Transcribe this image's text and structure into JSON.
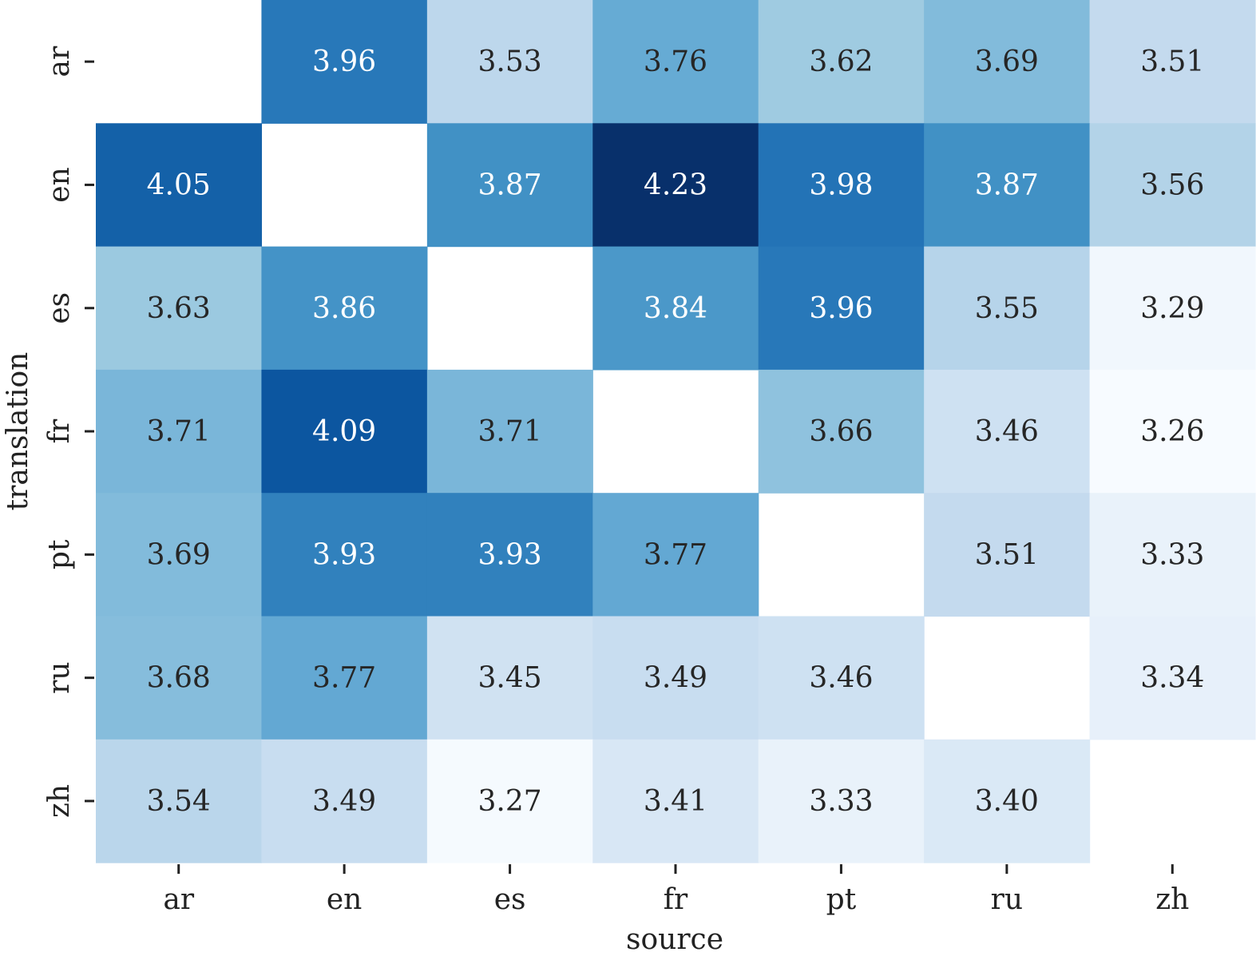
{
  "chart_data": {
    "type": "heatmap",
    "title": "",
    "xlabel": "source",
    "ylabel": "translation",
    "x_categories": [
      "ar",
      "en",
      "es",
      "fr",
      "pt",
      "ru",
      "zh"
    ],
    "y_categories": [
      "ar",
      "en",
      "es",
      "fr",
      "pt",
      "ru",
      "zh"
    ],
    "values": [
      [
        null,
        3.96,
        3.53,
        3.76,
        3.62,
        3.69,
        3.51
      ],
      [
        4.05,
        null,
        3.87,
        4.23,
        3.98,
        3.87,
        3.56
      ],
      [
        3.63,
        3.86,
        null,
        3.84,
        3.96,
        3.55,
        3.29
      ],
      [
        3.71,
        4.09,
        3.71,
        null,
        3.66,
        3.46,
        3.26
      ],
      [
        3.69,
        3.93,
        3.93,
        3.77,
        null,
        3.51,
        3.33
      ],
      [
        3.68,
        3.77,
        3.45,
        3.49,
        3.46,
        null,
        3.34
      ],
      [
        3.54,
        3.49,
        3.27,
        3.41,
        3.33,
        3.4,
        null
      ]
    ],
    "vmin": 3.26,
    "vmax": 4.23,
    "colormap": "Blues",
    "colorbar": false,
    "grid": false
  }
}
